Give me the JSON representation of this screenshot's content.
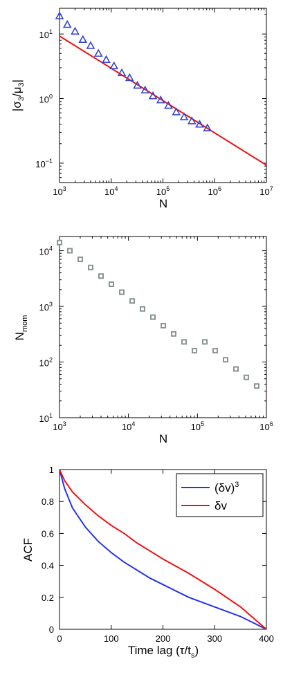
{
  "chart_data": [
    {
      "type": "scatter",
      "title": "",
      "xlabel": "N",
      "ylabel": "|σ3/μ3|",
      "ylabel_parts": {
        "bar_open": "|",
        "sigma": "σ",
        "sigma_sub": "3",
        "slash": "/",
        "mu": "μ",
        "mu_sub": "3",
        "bar_close": "|"
      },
      "xscale": "log",
      "yscale": "log",
      "xlim": [
        1000,
        10000000
      ],
      "ylim": [
        0.05,
        25
      ],
      "x_ticks": [
        {
          "base": "10",
          "exp": "3"
        },
        {
          "base": "10",
          "exp": "4"
        },
        {
          "base": "10",
          "exp": "5"
        },
        {
          "base": "10",
          "exp": "6"
        },
        {
          "base": "10",
          "exp": "7"
        }
      ],
      "y_ticks": [
        {
          "base": "10",
          "exp": "−1"
        },
        {
          "base": "10",
          "exp": "0"
        },
        {
          "base": "10",
          "exp": "1"
        }
      ],
      "series": [
        {
          "marker": "triangle",
          "color": "#3344cc",
          "x": [
            1000,
            1414,
            2000,
            2828,
            4000,
            5657,
            8000,
            11314,
            16000,
            22627,
            32000,
            45255,
            64000,
            90510,
            128000,
            181019,
            256000,
            362039,
            512000,
            724077
          ],
          "y": [
            19,
            14,
            11,
            8.2,
            6.6,
            5.0,
            4.0,
            3.2,
            2.5,
            2.1,
            1.6,
            1.35,
            1.1,
            0.95,
            0.78,
            0.62,
            0.52,
            0.45,
            0.4,
            0.35
          ]
        },
        {
          "marker": "line",
          "color": "#ee1111",
          "x": [
            1000,
            10000000
          ],
          "y": [
            9.3,
            0.093
          ]
        }
      ],
      "grid": false
    },
    {
      "type": "scatter",
      "title": "",
      "xlabel": "N",
      "ylabel": "Nmom",
      "ylabel_parts": {
        "main": "N",
        "sub": "mom"
      },
      "xscale": "log",
      "yscale": "log",
      "xlim": [
        1000,
        1000000
      ],
      "ylim": [
        10,
        18000
      ],
      "x_ticks": [
        {
          "base": "10",
          "exp": "3"
        },
        {
          "base": "10",
          "exp": "4"
        },
        {
          "base": "10",
          "exp": "5"
        },
        {
          "base": "10",
          "exp": "6"
        }
      ],
      "y_ticks": [
        {
          "base": "10",
          "exp": "1"
        },
        {
          "base": "10",
          "exp": "2"
        },
        {
          "base": "10",
          "exp": "3"
        },
        {
          "base": "10",
          "exp": "4"
        }
      ],
      "series": [
        {
          "marker": "square",
          "color": "#8a9490",
          "x": [
            1000,
            1414,
            2000,
            2828,
            4000,
            5657,
            8000,
            11314,
            16000,
            22627,
            32000,
            45255,
            64000,
            90510,
            128000,
            181019,
            256000,
            362039,
            512000,
            724077
          ],
          "y": [
            14000,
            10000,
            7000,
            5000,
            3500,
            2500,
            1800,
            1250,
            900,
            640,
            450,
            320,
            230,
            160,
            230,
            160,
            110,
            75,
            53,
            37
          ]
        }
      ],
      "grid": false
    },
    {
      "type": "line",
      "title": "",
      "xlabel": "Time lag (τ/ts)",
      "xlabel_parts": {
        "main": "Time lag (",
        "tau": "τ",
        "slash": "/t",
        "sub": "s",
        "close": ")"
      },
      "ylabel": "ACF",
      "xlim": [
        0,
        400
      ],
      "ylim": [
        0,
        1
      ],
      "x_ticks": [
        "0",
        "100",
        "200",
        "300",
        "400"
      ],
      "y_ticks": [
        "0",
        "0.2",
        "0.4",
        "0.6",
        "0.8",
        "1"
      ],
      "legend_position": "top-right",
      "series": [
        {
          "name": "(δv)3",
          "name_parts": {
            "main": "(δv)",
            "sup": "3"
          },
          "color": "#2233ee",
          "x": [
            0,
            10,
            25,
            50,
            75,
            100,
            125,
            150,
            175,
            200,
            250,
            300,
            350,
            400
          ],
          "y": [
            1,
            0.88,
            0.76,
            0.64,
            0.55,
            0.48,
            0.42,
            0.37,
            0.32,
            0.28,
            0.2,
            0.14,
            0.08,
            0
          ]
        },
        {
          "name": "δv",
          "name_parts": {
            "main": "δv",
            "sup": ""
          },
          "color": "#ee1111",
          "x": [
            0,
            10,
            25,
            50,
            75,
            100,
            125,
            150,
            175,
            200,
            250,
            300,
            350,
            400
          ],
          "y": [
            1,
            0.93,
            0.86,
            0.78,
            0.71,
            0.65,
            0.6,
            0.54,
            0.49,
            0.44,
            0.35,
            0.25,
            0.14,
            0
          ]
        }
      ],
      "grid": false
    }
  ]
}
